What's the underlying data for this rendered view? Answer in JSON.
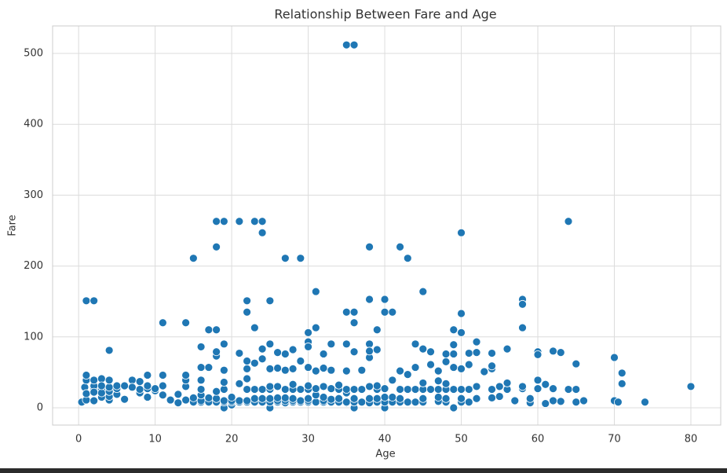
{
  "chart_data": {
    "type": "scatter",
    "title": "Relationship Between Fare and Age",
    "x_label": "Age",
    "y_label": "Fare",
    "color": "#1f77b4",
    "grid": true,
    "xlim": [
      -3.4,
      83.9
    ],
    "ylim": [
      -24.4,
      538.8
    ],
    "xticks": [
      0,
      10,
      20,
      30,
      40,
      50,
      60,
      70,
      80
    ],
    "yticks": [
      0,
      100,
      200,
      300,
      400,
      500
    ],
    "x": [
      35,
      36,
      18,
      19,
      21,
      23,
      24,
      24,
      64,
      50,
      18,
      38,
      42,
      15,
      27,
      29,
      43,
      31,
      45,
      1,
      2,
      22,
      25,
      38,
      40,
      58,
      58,
      50,
      35,
      36,
      40,
      41,
      22,
      11,
      14,
      36,
      17,
      18,
      31,
      23,
      39,
      49,
      50,
      58,
      30,
      30,
      19,
      25,
      33,
      35,
      38,
      44,
      52,
      4,
      16,
      70,
      71,
      71,
      74,
      80,
      65,
      62,
      63,
      60,
      60,
      56,
      54,
      48,
      49,
      45,
      0.4,
      0.8,
      1,
      1,
      1,
      1,
      2,
      2,
      2,
      2,
      2,
      3,
      3,
      3,
      3,
      3,
      4,
      4,
      4,
      4,
      4,
      5,
      5,
      5,
      6,
      6,
      7,
      7,
      8,
      8,
      8,
      9,
      9,
      9,
      9,
      10,
      10,
      11,
      11,
      11,
      12,
      13,
      13,
      14,
      14,
      14,
      14,
      15,
      15,
      16,
      16,
      16,
      16,
      16,
      16,
      17,
      17,
      17,
      18,
      18,
      18,
      18,
      18,
      19,
      19,
      19,
      19,
      19,
      19,
      20,
      20,
      20,
      20,
      21,
      21,
      21,
      21,
      22,
      22,
      22,
      22,
      22,
      22,
      23,
      23,
      23,
      23,
      24,
      24,
      24,
      24,
      24,
      25,
      25,
      25,
      25,
      25,
      25,
      26,
      26,
      26,
      26,
      26,
      26,
      27,
      27,
      27,
      27,
      27,
      27,
      28,
      28,
      28,
      28,
      28,
      28,
      28,
      29,
      29,
      29,
      29,
      30,
      30,
      30,
      30,
      30,
      30,
      30,
      31,
      31,
      31,
      31,
      32,
      32,
      32,
      32,
      32,
      32,
      33,
      33,
      33,
      33,
      34,
      34,
      34,
      34,
      35,
      35,
      35,
      35,
      35,
      36,
      36,
      36,
      36,
      36,
      37,
      37,
      37,
      38,
      38,
      38,
      38,
      38,
      39,
      39,
      39,
      39,
      39,
      40,
      40,
      40,
      40,
      41,
      41,
      41,
      42,
      42,
      42,
      42,
      43,
      43,
      43,
      44,
      44,
      44,
      45,
      45,
      45,
      45,
      46,
      46,
      46,
      47,
      47,
      47,
      47,
      47,
      48,
      48,
      48,
      48,
      48,
      49,
      49,
      49,
      49,
      50,
      50,
      50,
      50,
      51,
      51,
      51,
      51,
      52,
      52,
      52,
      53,
      54,
      54,
      54,
      54,
      55,
      55,
      56,
      56,
      57,
      58,
      58,
      59,
      59,
      60,
      60,
      61,
      61,
      62,
      62,
      63,
      63,
      64,
      65,
      65,
      66,
      70,
      70.5
    ],
    "values": [
      512,
      512,
      263,
      263,
      263,
      263,
      263,
      247,
      263,
      247,
      227,
      227,
      227,
      211,
      211,
      211,
      211,
      164,
      164,
      151,
      151,
      151,
      151,
      153,
      153,
      153,
      146,
      133,
      135,
      135,
      135,
      135,
      135,
      120,
      120,
      120,
      110,
      110,
      113,
      113,
      110,
      110,
      106,
      113,
      106,
      93,
      90,
      90,
      90,
      90,
      90,
      90,
      93,
      81,
      86,
      71,
      49,
      34,
      8,
      30,
      62,
      80,
      78,
      79,
      75,
      83,
      77,
      76,
      89,
      83,
      8,
      29,
      11,
      20,
      39,
      46,
      10,
      27,
      31,
      39,
      22,
      15,
      26,
      41,
      21,
      31,
      11,
      16,
      23,
      29,
      39,
      19,
      27,
      31,
      12,
      31,
      39,
      29,
      21,
      26,
      37,
      15,
      27,
      31,
      46,
      24,
      27,
      18,
      31,
      46,
      11,
      7,
      19,
      11,
      30,
      39,
      46,
      8,
      14,
      8,
      10,
      18,
      26,
      39,
      57,
      8,
      14,
      57,
      8,
      13,
      23,
      73,
      79,
      0,
      8,
      10,
      26,
      36,
      53,
      4,
      8,
      10,
      15,
      8,
      10,
      34,
      77,
      8,
      10,
      26,
      41,
      55,
      66,
      8,
      13,
      26,
      63,
      8,
      13,
      26,
      69,
      83,
      0,
      8,
      13,
      26,
      30,
      55,
      8,
      10,
      14,
      30,
      56,
      78,
      7,
      10,
      14,
      26,
      53,
      76,
      8,
      10,
      13,
      26,
      33,
      55,
      82,
      8,
      10,
      26,
      66,
      8,
      10,
      13,
      26,
      31,
      57,
      86,
      8,
      18,
      27,
      52,
      8,
      10,
      15,
      30,
      56,
      76,
      8,
      12,
      27,
      53,
      8,
      13,
      26,
      32,
      7,
      8,
      21,
      26,
      52,
      0,
      8,
      13,
      26,
      79,
      8,
      26,
      53,
      7,
      13,
      30,
      71,
      80,
      8,
      13,
      26,
      31,
      82,
      0,
      8,
      15,
      27,
      8,
      15,
      39,
      8,
      13,
      26,
      52,
      8,
      26,
      47,
      8,
      26,
      57,
      8,
      13,
      26,
      35,
      26,
      61,
      79,
      9,
      15,
      26,
      38,
      52,
      8,
      13,
      26,
      34,
      65,
      0,
      26,
      57,
      76,
      8,
      13,
      26,
      55,
      8,
      26,
      61,
      77,
      13,
      30,
      78,
      51,
      14,
      26,
      55,
      59,
      16,
      30,
      26,
      35,
      10,
      27,
      30,
      7,
      13,
      27,
      39,
      6,
      33,
      10,
      27,
      9,
      78,
      26,
      8,
      26,
      10,
      10,
      8
    ]
  }
}
